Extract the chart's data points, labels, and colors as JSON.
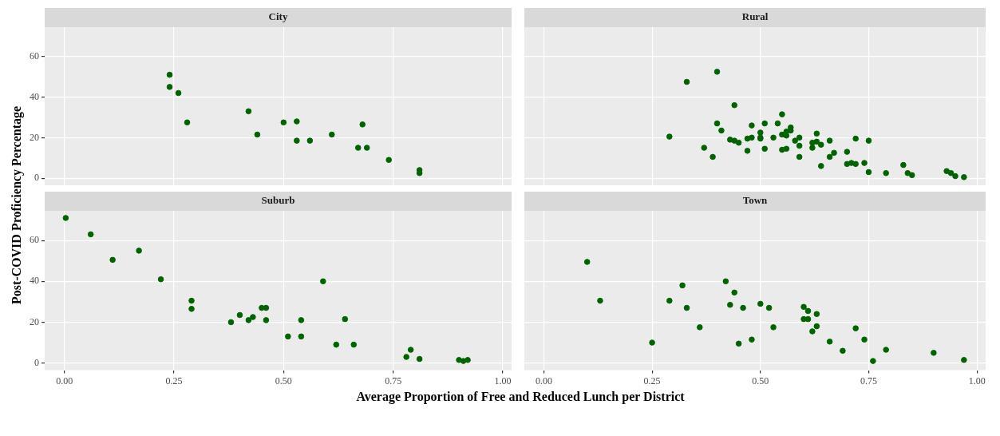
{
  "chart_data": [
    {
      "type": "scatter",
      "title": "City",
      "ylabel": "Post-COVID Proficiency Percentage",
      "x": [
        0.24,
        0.24,
        0.26,
        0.28,
        0.42,
        0.44,
        0.5,
        0.53,
        0.53,
        0.56,
        0.61,
        0.67,
        0.69,
        0.68,
        0.74,
        0.81,
        0.81
      ],
      "series": [
        {
          "color": "#006400",
          "values": [
            51,
            45,
            42,
            27.5,
            33,
            21.5,
            27.5,
            28,
            18.5,
            18.5,
            21.5,
            15,
            15,
            26.5,
            9,
            4,
            2.5
          ]
        }
      ],
      "xlim": [
        -0.045,
        1.02
      ],
      "ylim": [
        -3.5,
        74.5
      ],
      "xticks": [
        0,
        0.25,
        0.5,
        0.75,
        1
      ],
      "yticks": [
        0,
        20,
        40,
        60
      ],
      "grid": true,
      "marker": "circle",
      "tick_labels": "y"
    },
    {
      "type": "scatter",
      "title": "Rural",
      "x": [
        0.29,
        0.33,
        0.4,
        0.37,
        0.39,
        0.4,
        0.41,
        0.43,
        0.44,
        0.44,
        0.45,
        0.47,
        0.47,
        0.48,
        0.48,
        0.5,
        0.5,
        0.5,
        0.51,
        0.51,
        0.53,
        0.54,
        0.55,
        0.55,
        0.55,
        0.56,
        0.56,
        0.56,
        0.57,
        0.57,
        0.58,
        0.59,
        0.59,
        0.59,
        0.62,
        0.62,
        0.63,
        0.63,
        0.64,
        0.64,
        0.66,
        0.66,
        0.67,
        0.7,
        0.7,
        0.71,
        0.72,
        0.72,
        0.74,
        0.75,
        0.75,
        0.79,
        0.83,
        0.84,
        0.85,
        0.93,
        0.94,
        0.95,
        0.97
      ],
      "series": [
        {
          "color": "#006400",
          "values": [
            20.5,
            47.5,
            52.5,
            15,
            10.5,
            27,
            23.5,
            19,
            36,
            18.5,
            17.5,
            13.5,
            19.5,
            26,
            20,
            22.5,
            20,
            19.5,
            27,
            14.5,
            20,
            27,
            31.5,
            21.5,
            14,
            21,
            23,
            14.5,
            25,
            23.5,
            18.5,
            20,
            10.5,
            16,
            15,
            17.5,
            22,
            18,
            16.5,
            6,
            18.5,
            10.5,
            12.5,
            13,
            7,
            7.5,
            7,
            19.5,
            7.5,
            18.5,
            3,
            2.5,
            6.5,
            2.5,
            1.5,
            3.5,
            2.5,
            1,
            0.5
          ]
        }
      ],
      "xlim": [
        -0.045,
        1.02
      ],
      "ylim": [
        -3.5,
        74.5
      ],
      "xticks": [
        0,
        0.25,
        0.5,
        0.75,
        1
      ],
      "yticks": [
        0,
        20,
        40,
        60
      ],
      "grid": true,
      "marker": "circle",
      "tick_labels": false
    },
    {
      "type": "scatter",
      "title": "Suburb",
      "xlabel": "Average Proportion of Free and Reduced Lunch per District",
      "x": [
        0.003,
        0.06,
        0.11,
        0.17,
        0.22,
        0.29,
        0.29,
        0.38,
        0.4,
        0.42,
        0.43,
        0.45,
        0.46,
        0.46,
        0.51,
        0.54,
        0.54,
        0.59,
        0.62,
        0.64,
        0.66,
        0.78,
        0.79,
        0.81,
        0.9,
        0.91,
        0.92
      ],
      "series": [
        {
          "color": "#006400",
          "values": [
            71,
            63,
            50.5,
            55,
            41,
            30.5,
            26.5,
            20,
            23.5,
            21,
            22.5,
            27,
            27,
            21,
            13,
            21,
            13,
            40,
            9,
            21.5,
            9,
            3,
            6.5,
            2,
            1.5,
            1,
            1.5
          ]
        }
      ],
      "xlim": [
        -0.045,
        1.02
      ],
      "ylim": [
        -3.5,
        74.5
      ],
      "xticks": [
        {
          "value": 0,
          "label": "0.00"
        },
        {
          "value": 0.25,
          "label": "0.25"
        },
        {
          "value": 0.5,
          "label": "0.50"
        },
        {
          "value": 0.75,
          "label": "0.75"
        },
        {
          "value": 1,
          "label": "1.00"
        }
      ],
      "yticks": [
        0,
        20,
        40,
        60
      ],
      "grid": true,
      "marker": "circle"
    },
    {
      "type": "scatter",
      "title": "Town",
      "x": [
        0.1,
        0.13,
        0.25,
        0.29,
        0.32,
        0.33,
        0.36,
        0.42,
        0.43,
        0.44,
        0.45,
        0.46,
        0.48,
        0.5,
        0.52,
        0.53,
        0.6,
        0.6,
        0.61,
        0.61,
        0.62,
        0.63,
        0.63,
        0.66,
        0.69,
        0.72,
        0.74,
        0.76,
        0.79,
        0.9,
        0.97
      ],
      "series": [
        {
          "color": "#006400",
          "values": [
            49.5,
            30.5,
            10,
            30.5,
            38,
            27,
            17.5,
            40,
            28.5,
            34.5,
            9.5,
            27,
            11.5,
            29,
            27,
            17.5,
            27.5,
            21.5,
            25.5,
            21.5,
            15.5,
            24,
            18,
            10.5,
            6,
            17,
            11.5,
            1,
            6.5,
            5,
            1.5
          ]
        }
      ],
      "xlim": [
        -0.045,
        1.02
      ],
      "ylim": [
        -3.5,
        74.5
      ],
      "xticks": [
        {
          "value": 0,
          "label": "0.00"
        },
        {
          "value": 0.25,
          "label": "0.25"
        },
        {
          "value": 0.5,
          "label": "0.50"
        },
        {
          "value": 0.75,
          "label": "0.75"
        },
        {
          "value": 1,
          "label": "1.00"
        }
      ],
      "yticks": [
        0,
        20,
        40,
        60
      ],
      "grid": true,
      "marker": "circle",
      "tick_labels": "x"
    }
  ]
}
